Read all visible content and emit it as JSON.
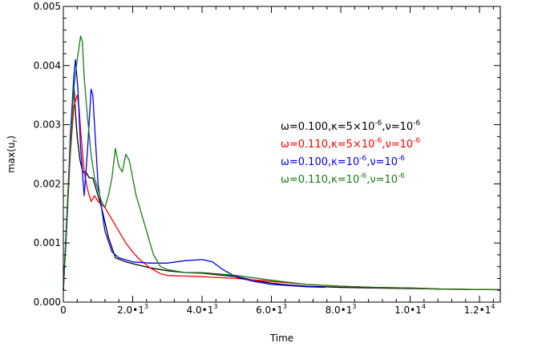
{
  "chart_data": {
    "type": "line",
    "xlabel": "Time",
    "ylabel": "max(u",
    "ylabel_sub": "r",
    "ylabel_close": ")",
    "xlim": [
      0,
      12600
    ],
    "ylim": [
      0,
      0.005
    ],
    "x_ticks": [
      {
        "value": 0,
        "label": "0"
      },
      {
        "value": 2000,
        "label": "2.0•1",
        "exp": "3"
      },
      {
        "value": 4000,
        "label": "4.0•1",
        "exp": "3"
      },
      {
        "value": 6000,
        "label": "6.0•1",
        "exp": "3"
      },
      {
        "value": 8000,
        "label": "8.0•1",
        "exp": "3"
      },
      {
        "value": 10000,
        "label": "1.0•1",
        "exp": "4"
      },
      {
        "value": 12000,
        "label": "1.2•1",
        "exp": "4"
      }
    ],
    "y_ticks": [
      {
        "value": 0.0,
        "label": "0.000"
      },
      {
        "value": 0.001,
        "label": "0.001"
      },
      {
        "value": 0.002,
        "label": "0.002"
      },
      {
        "value": 0.003,
        "label": "0.003"
      },
      {
        "value": 0.004,
        "label": "0.004"
      },
      {
        "value": 0.005,
        "label": "0.005"
      }
    ],
    "grid": false,
    "legend_placement": "right-middle",
    "series": [
      {
        "color": "#000000",
        "legend": [
          {
            "t": "ω=0.100,κ=5×10"
          },
          {
            "t": "-6",
            "sup": true
          },
          {
            "t": ",ν=10"
          },
          {
            "t": "-6",
            "sup": true
          }
        ],
        "x": [
          0,
          80,
          160,
          250,
          300,
          350,
          400,
          480,
          560,
          650,
          750,
          850,
          950,
          1100,
          1300,
          1500,
          1800,
          2000,
          2500,
          3000,
          3500,
          4000,
          4500,
          5000,
          5500,
          6000,
          6500,
          7000,
          7500,
          8000,
          9000,
          10000,
          11000,
          12600
        ],
        "y": [
          0.0002,
          0.0012,
          0.0022,
          0.0031,
          0.0037,
          0.0032,
          0.0028,
          0.0024,
          0.0022,
          0.0022,
          0.0021,
          0.0021,
          0.0019,
          0.0016,
          0.0011,
          0.00075,
          0.00068,
          0.00065,
          0.00058,
          0.00053,
          0.0005,
          0.00049,
          0.00046,
          0.00043,
          0.00037,
          0.00032,
          0.00029,
          0.00027,
          0.00026,
          0.00025,
          0.00024,
          0.00023,
          0.00022,
          0.00021
        ]
      },
      {
        "color": "#ff0000",
        "legend": [
          {
            "t": "ω=0.110,κ=5×10"
          },
          {
            "t": "-6",
            "sup": true
          },
          {
            "t": ",ν=10"
          },
          {
            "t": "-6",
            "sup": true
          }
        ],
        "x": [
          0,
          100,
          200,
          300,
          400,
          450,
          500,
          600,
          700,
          800,
          900,
          1000,
          1200,
          1400,
          1600,
          1800,
          2000,
          2200,
          2500,
          2800,
          3000,
          3500,
          4000,
          5000,
          6000,
          7000,
          8000,
          9000,
          10000,
          11000,
          12600
        ],
        "y": [
          0.0002,
          0.0013,
          0.0025,
          0.0033,
          0.0035,
          0.0033,
          0.0029,
          0.0022,
          0.0019,
          0.0017,
          0.0018,
          0.0017,
          0.0016,
          0.0014,
          0.0012,
          0.001,
          0.00085,
          0.00072,
          0.00058,
          0.00048,
          0.00045,
          0.00044,
          0.00043,
          0.0004,
          0.00035,
          0.0003,
          0.00027,
          0.00025,
          0.00024,
          0.00022,
          0.00021
        ]
      },
      {
        "color": "#0000ff",
        "legend": [
          {
            "t": "ω=0.100,κ=10"
          },
          {
            "t": "-6",
            "sup": true
          },
          {
            "t": ",ν=10"
          },
          {
            "t": "-6",
            "sup": true
          }
        ],
        "x": [
          0,
          100,
          200,
          300,
          350,
          420,
          500,
          600,
          700,
          800,
          850,
          900,
          1000,
          1200,
          1400,
          1600,
          2000,
          2500,
          3000,
          3500,
          4000,
          4300,
          4600,
          5000,
          5500,
          6000,
          6500,
          7000,
          7550
        ],
        "y": [
          0.0002,
          0.0013,
          0.0028,
          0.0038,
          0.0041,
          0.0036,
          0.0026,
          0.0018,
          0.0026,
          0.0036,
          0.0035,
          0.003,
          0.002,
          0.0012,
          0.00085,
          0.00075,
          0.00068,
          0.00066,
          0.00066,
          0.0007,
          0.00072,
          0.00068,
          0.00055,
          0.00042,
          0.00035,
          0.0003,
          0.00028,
          0.00026,
          0.00025
        ]
      },
      {
        "color": "#1a7a1a",
        "legend": [
          {
            "t": "ω=0.110,κ=10"
          },
          {
            "t": "-6",
            "sup": true
          },
          {
            "t": ",ν=10"
          },
          {
            "t": "-6",
            "sup": true
          }
        ],
        "x": [
          0,
          100,
          200,
          300,
          400,
          500,
          550,
          600,
          700,
          800,
          900,
          1000,
          1100,
          1200,
          1300,
          1400,
          1500,
          1600,
          1700,
          1800,
          1900,
          2000,
          2100,
          2200,
          2300,
          2400,
          2500,
          2600,
          2800,
          3000,
          3500,
          4000,
          5000,
          6000,
          7000,
          8000,
          9000,
          10000,
          11000,
          12600
        ],
        "y": [
          0.0002,
          0.0014,
          0.0026,
          0.0036,
          0.0041,
          0.0045,
          0.0044,
          0.0038,
          0.0031,
          0.0025,
          0.0021,
          0.0019,
          0.0017,
          0.0016,
          0.0018,
          0.0021,
          0.0026,
          0.0023,
          0.0022,
          0.0025,
          0.0024,
          0.0021,
          0.0018,
          0.0016,
          0.0014,
          0.0012,
          0.001,
          0.0008,
          0.0006,
          0.00055,
          0.0005,
          0.0005,
          0.00045,
          0.00037,
          0.0003,
          0.00027,
          0.00025,
          0.00024,
          0.00022,
          0.00021
        ]
      }
    ]
  }
}
